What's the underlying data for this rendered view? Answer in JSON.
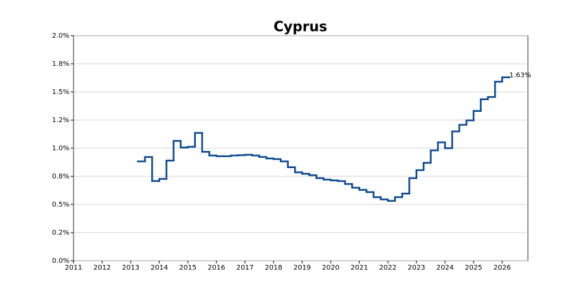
{
  "chart_data": {
    "type": "step",
    "title": "Cyprus",
    "color": "#0b4a8f",
    "grid": true,
    "x": [
      2013.25,
      2013.5,
      2013.75,
      2014,
      2014.25,
      2014.5,
      2014.75,
      2015,
      2015.25,
      2015.5,
      2015.75,
      2016,
      2016.25,
      2016.5,
      2016.75,
      2017,
      2017.25,
      2017.5,
      2017.75,
      2018,
      2018.25,
      2018.5,
      2018.75,
      2019,
      2019.25,
      2019.5,
      2019.75,
      2020,
      2020.25,
      2020.5,
      2020.75,
      2021,
      2021.25,
      2021.5,
      2021.75,
      2022,
      2022.25,
      2022.5,
      2022.75,
      2023,
      2023.25,
      2023.5,
      2023.75,
      2024,
      2024.25,
      2024.5,
      2024.75,
      2025,
      2025.25,
      2025.5,
      2025.75,
      2026
    ],
    "values": [
      0.883,
      0.922,
      0.708,
      0.727,
      0.89,
      1.065,
      1.006,
      1.013,
      1.136,
      0.968,
      0.935,
      0.929,
      0.929,
      0.935,
      0.938,
      0.942,
      0.935,
      0.922,
      0.909,
      0.903,
      0.883,
      0.831,
      0.786,
      0.773,
      0.76,
      0.734,
      0.721,
      0.714,
      0.708,
      0.682,
      0.649,
      0.63,
      0.61,
      0.565,
      0.545,
      0.532,
      0.565,
      0.597,
      0.734,
      0.805,
      0.87,
      0.981,
      1.052,
      1.0,
      1.149,
      1.208,
      1.247,
      1.331,
      1.435,
      1.455,
      1.591,
      1.63
    ],
    "value_labels": [
      null,
      null,
      null,
      null,
      null,
      null,
      null,
      null,
      null,
      null,
      null,
      null,
      null,
      null,
      null,
      null,
      null,
      null,
      null,
      null,
      null,
      null,
      null,
      null,
      null,
      null,
      null,
      null,
      null,
      null,
      null,
      null,
      null,
      null,
      null,
      null,
      null,
      null,
      null,
      null,
      null,
      null,
      null,
      null,
      null,
      null,
      null,
      null,
      null,
      null,
      null,
      "1.63%"
    ],
    "xlim": [
      2011,
      2026.9
    ],
    "xticks": [
      2011,
      2012,
      2013,
      2014,
      2015,
      2016,
      2017,
      2018,
      2019,
      2020,
      2021,
      2022,
      2023,
      2024,
      2025,
      2026
    ],
    "ylim": [
      0,
      2.0
    ],
    "yticks": [
      {
        "value": 0,
        "label": "0.0%"
      },
      {
        "value": 0.25,
        "label": "0.2%"
      },
      {
        "value": 0.5,
        "label": "0.5%"
      },
      {
        "value": 0.75,
        "label": "0.8%"
      },
      {
        "value": 1.0,
        "label": "1.0%"
      },
      {
        "value": 1.25,
        "label": "1.2%"
      },
      {
        "value": 1.5,
        "label": "1.5%"
      },
      {
        "value": 1.75,
        "label": "1.8%"
      },
      {
        "value": 2.0,
        "label": "2.0%"
      }
    ]
  }
}
